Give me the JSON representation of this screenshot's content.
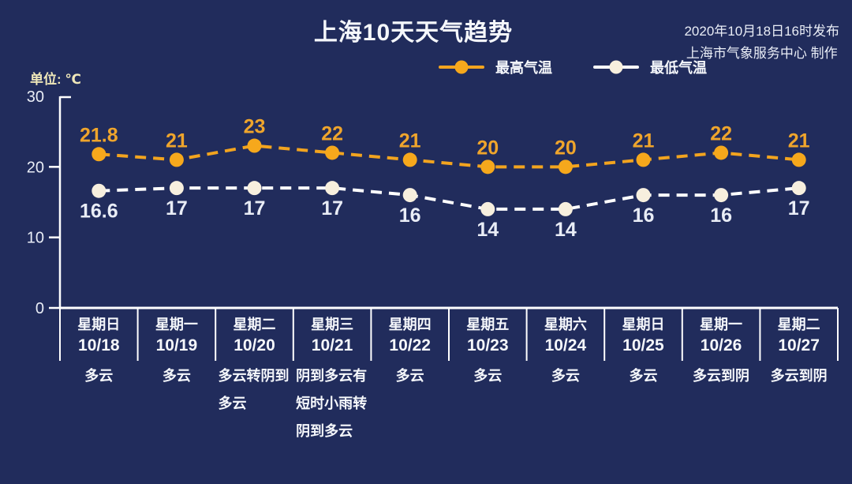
{
  "header": {
    "title": "上海10天天气趋势",
    "publish_line1": "2020年10月18日16时发布",
    "publish_line2": "上海市气象服务中心 制作",
    "unit_label": "单位: ℃"
  },
  "colors": {
    "background": "#212C5C",
    "title_text": "#F5F7FB",
    "publish_text": "#E9EDF6",
    "unit_text": "#EFE7B9",
    "axis": "#FFFFFF",
    "tick_text": "#E9EDF6",
    "divider": "#FFFFFF",
    "high_line": "#F2A41F",
    "high_point": "#F6A81C",
    "high_label": "#EFA52C",
    "low_line": "#FFFFFF",
    "low_point": "#F7EFDE",
    "low_label": "#E9EDF6",
    "day_text": "#F5F7FB",
    "weather_text": "#F5F7FB"
  },
  "chart_data": {
    "type": "line",
    "title": "上海10天天气趋势",
    "ylabel": "单位: ℃",
    "ylim": [
      0,
      30
    ],
    "yticks": [
      0,
      10,
      20,
      30
    ],
    "grid": false,
    "legend_position": "top",
    "line_style": "dashed",
    "categories": [
      {
        "day": "星期日",
        "date": "10/18",
        "weather": "多云"
      },
      {
        "day": "星期一",
        "date": "10/19",
        "weather": "多云"
      },
      {
        "day": "星期二",
        "date": "10/20",
        "weather": "多云转阴到多云"
      },
      {
        "day": "星期三",
        "date": "10/21",
        "weather": "阴到多云有短时小雨转阴到多云"
      },
      {
        "day": "星期四",
        "date": "10/22",
        "weather": "多云"
      },
      {
        "day": "星期五",
        "date": "10/23",
        "weather": "多云"
      },
      {
        "day": "星期六",
        "date": "10/24",
        "weather": "多云"
      },
      {
        "day": "星期日",
        "date": "10/25",
        "weather": "多云"
      },
      {
        "day": "星期一",
        "date": "10/26",
        "weather": "多云到阴"
      },
      {
        "day": "星期二",
        "date": "10/27",
        "weather": "多云到阴"
      }
    ],
    "series": [
      {
        "name": "最高气温",
        "values": [
          21.8,
          21,
          23,
          22,
          21,
          20,
          20,
          21,
          22,
          21
        ],
        "color": "#F2A41F",
        "point_color": "#F6A81C",
        "label_color": "#EFA52C",
        "label_position": "above"
      },
      {
        "name": "最低气温",
        "values": [
          16.6,
          17,
          17,
          17,
          16,
          14,
          14,
          16,
          16,
          17
        ],
        "color": "#FFFFFF",
        "point_color": "#F7EFDE",
        "label_color": "#E9EDF6",
        "label_position": "below"
      }
    ]
  }
}
